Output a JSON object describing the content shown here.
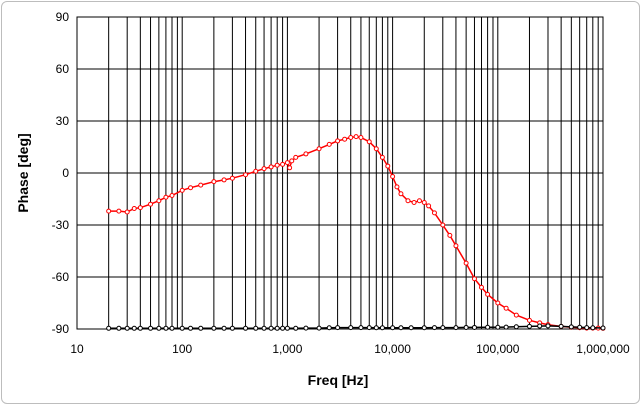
{
  "chart_data": {
    "type": "line",
    "title": "",
    "xlabel": "Freq [Hz]",
    "ylabel": "Phase [deg]",
    "x_scale": "log",
    "xlim": [
      10,
      1000000
    ],
    "ylim": [
      -90,
      90
    ],
    "y_ticks": [
      90,
      60,
      30,
      0,
      -30,
      -60,
      -90
    ],
    "x_ticks": [
      10,
      100,
      1000,
      10000,
      100000,
      1000000
    ],
    "x_tick_labels": [
      "10",
      "100",
      "1,000",
      "10,000",
      "100,000",
      "1,000,000"
    ],
    "grid": true,
    "legend": "none",
    "series": [
      {
        "color": "#ff0000",
        "marker": "circle-open",
        "x": [
          20,
          25,
          30,
          35,
          40,
          50,
          60,
          70,
          80,
          100,
          120,
          150,
          200,
          250,
          300,
          400,
          500,
          600,
          700,
          800,
          900,
          1000,
          1050,
          1100,
          1200,
          1500,
          2000,
          2500,
          3000,
          3500,
          4000,
          4500,
          5000,
          6000,
          7000,
          8000,
          9000,
          10000,
          11000,
          12000,
          14000,
          16000,
          18000,
          20000,
          22000,
          25000,
          30000,
          35000,
          40000,
          50000,
          60000,
          70000,
          80000,
          100000,
          120000,
          150000,
          200000,
          250000,
          300000,
          400000,
          500000,
          600000,
          700000,
          800000,
          900000,
          1000000
        ],
        "y": [
          -22,
          -22,
          -22.5,
          -20.5,
          -20,
          -18,
          -16,
          -14,
          -13,
          -10,
          -8.5,
          -7,
          -5,
          -4,
          -3,
          -1,
          1,
          2.5,
          3.5,
          4.5,
          5,
          6,
          3,
          7,
          9,
          11,
          14,
          16.5,
          18.5,
          19.5,
          20.5,
          21,
          20.5,
          18,
          14,
          9,
          4,
          -2,
          -8,
          -12,
          -16,
          -17,
          -16,
          -17,
          -19,
          -23,
          -30,
          -36,
          -42,
          -52,
          -61,
          -66,
          -70,
          -75,
          -78,
          -82,
          -85,
          -86.5,
          -87.5,
          -88.5,
          -89,
          -89.3,
          -89.5,
          -89.5,
          -89.5,
          -89.6
        ]
      },
      {
        "color": "#000000",
        "marker": "circle-open",
        "x": [
          20,
          25,
          30,
          35,
          40,
          50,
          60,
          70,
          80,
          100,
          120,
          150,
          200,
          250,
          300,
          400,
          500,
          600,
          700,
          800,
          900,
          1000,
          1200,
          1500,
          2000,
          2500,
          3000,
          4000,
          5000,
          6000,
          7000,
          8000,
          10000,
          12000,
          15000,
          20000,
          25000,
          30000,
          40000,
          50000,
          60000,
          80000,
          100000,
          120000,
          150000,
          200000,
          250000,
          300000,
          400000,
          500000,
          600000,
          700000,
          800000,
          1000000
        ],
        "y": [
          -89.6,
          -89.6,
          -89.6,
          -89.6,
          -89.6,
          -89.6,
          -89.6,
          -89.6,
          -89.6,
          -89.6,
          -89.6,
          -89.6,
          -89.6,
          -89.6,
          -89.6,
          -89.6,
          -89.6,
          -89.6,
          -89.6,
          -89.6,
          -89.6,
          -89.6,
          -89.6,
          -89.5,
          -89.5,
          -89.3,
          -89.2,
          -89.2,
          -89.2,
          -89.2,
          -89.3,
          -89.3,
          -89.3,
          -89.3,
          -89.3,
          -89.3,
          -89.2,
          -89.2,
          -89.2,
          -89.1,
          -89.1,
          -89.0,
          -89.0,
          -88.9,
          -88.7,
          -88.5,
          -88.3,
          -88.2,
          -88.5,
          -88.8,
          -89.0,
          -89.2,
          -89.3,
          -89.4
        ]
      }
    ]
  }
}
